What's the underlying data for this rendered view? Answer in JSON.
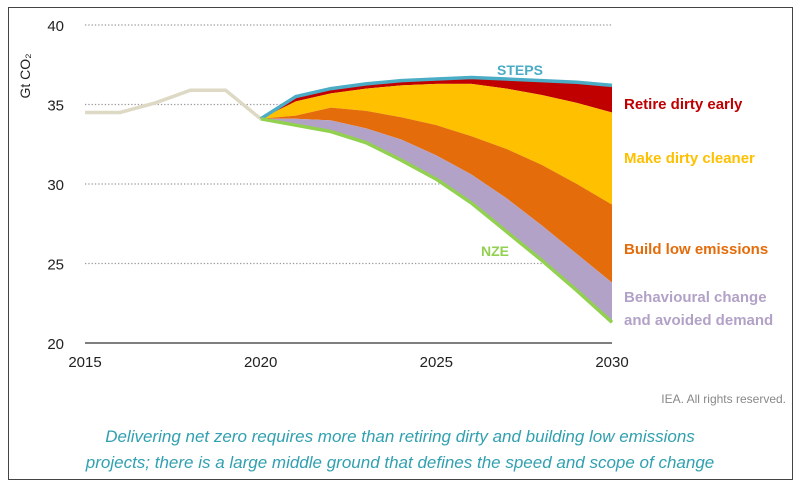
{
  "chart_data": {
    "type": "area",
    "ylabel": "Gt CO₂",
    "xlim": [
      2015,
      2030
    ],
    "ylim": [
      20,
      40
    ],
    "xticks": [
      2015,
      2020,
      2025,
      2030
    ],
    "yticks": [
      20,
      25,
      30,
      35,
      40
    ],
    "grid": "horizontal dotted",
    "historical": {
      "color": "#ddd9c4",
      "x": [
        2015,
        2016,
        2017,
        2018,
        2019,
        2020
      ],
      "y": [
        34.5,
        34.5,
        35.1,
        35.9,
        35.9,
        34.1
      ]
    },
    "x": [
      2020,
      2021,
      2022,
      2023,
      2024,
      2025,
      2026,
      2027,
      2028,
      2029,
      2030
    ],
    "lines": [
      {
        "name": "STEPS",
        "color": "#4bacc6",
        "y": [
          34.1,
          35.5,
          36.0,
          36.3,
          36.5,
          36.6,
          36.7,
          36.6,
          36.5,
          36.4,
          36.2
        ]
      },
      {
        "name": "NZE",
        "color": "#92d050",
        "y": [
          34.1,
          33.7,
          33.3,
          32.6,
          31.5,
          30.3,
          28.8,
          27.0,
          25.2,
          23.3,
          21.3
        ]
      }
    ],
    "bands": [
      {
        "name": "Retire dirty early",
        "color": "#c00000",
        "top": [
          34.1,
          35.5,
          36.0,
          36.3,
          36.5,
          36.6,
          36.7,
          36.6,
          36.5,
          36.4,
          36.2
        ],
        "bottom": [
          34.1,
          35.2,
          35.7,
          36.0,
          36.2,
          36.3,
          36.3,
          36.0,
          35.6,
          35.1,
          34.5
        ]
      },
      {
        "name": "Make dirty cleaner",
        "color": "#ffc000",
        "top": [
          34.1,
          35.2,
          35.7,
          36.0,
          36.2,
          36.3,
          36.3,
          36.0,
          35.6,
          35.1,
          34.5
        ],
        "bottom": [
          34.1,
          34.3,
          34.8,
          34.6,
          34.2,
          33.7,
          33.0,
          32.2,
          31.2,
          30.0,
          28.7
        ]
      },
      {
        "name": "Build low emissions",
        "color": "#e46c0a",
        "top": [
          34.1,
          34.3,
          34.8,
          34.6,
          34.2,
          33.7,
          33.0,
          32.2,
          31.2,
          30.0,
          28.7
        ],
        "bottom": [
          34.1,
          34.1,
          34.0,
          33.5,
          32.8,
          31.8,
          30.6,
          29.1,
          27.4,
          25.6,
          23.8
        ]
      },
      {
        "name": "Behavioural change and avoided demand",
        "color": "#b3a2c7",
        "top": [
          34.1,
          34.1,
          34.0,
          33.5,
          32.8,
          31.8,
          30.6,
          29.1,
          27.4,
          25.6,
          23.8
        ],
        "bottom": [
          34.1,
          33.7,
          33.3,
          32.6,
          31.5,
          30.3,
          28.8,
          27.0,
          25.2,
          23.3,
          21.3
        ]
      }
    ],
    "labels": {
      "steps": "STEPS",
      "nze": "NZE",
      "retire": "Retire dirty early",
      "cleaner": "Make dirty cleaner",
      "build": "Build low emissions",
      "behav1": "Behavioural change",
      "behav2": "and avoided demand"
    }
  },
  "credit": "IEA. All rights reserved.",
  "caption_line1": "Delivering net zero requires more than retiring dirty and building low emissions",
  "caption_line2": "projects; there is a large middle ground that defines the speed and scope of change"
}
